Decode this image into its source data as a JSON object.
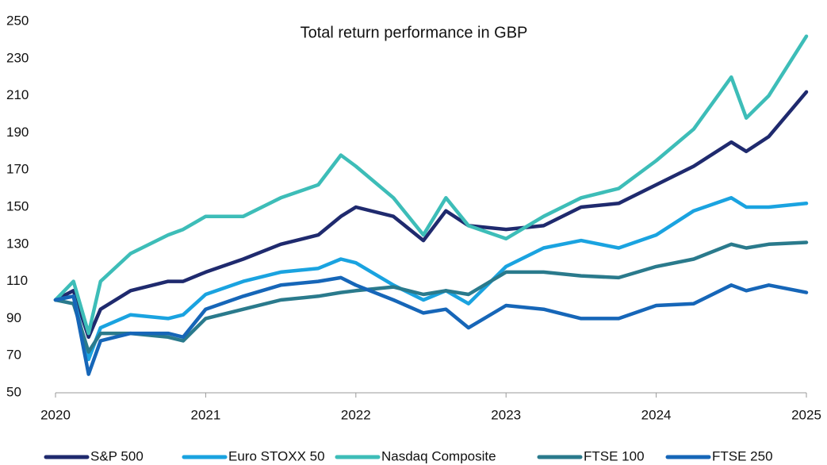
{
  "chart_data": {
    "type": "line",
    "title": "Total return performance in GBP",
    "x": [
      2020.0,
      2020.12,
      2020.22,
      2020.3,
      2020.5,
      2020.75,
      2020.85,
      2021.0,
      2021.25,
      2021.5,
      2021.75,
      2021.9,
      2022.0,
      2022.25,
      2022.45,
      2022.6,
      2022.75,
      2023.0,
      2023.25,
      2023.5,
      2023.75,
      2024.0,
      2024.25,
      2024.5,
      2024.6,
      2024.75,
      2025.0
    ],
    "series": [
      {
        "name": "S&P 500",
        "color": "#1f2a6e",
        "values": [
          100,
          105,
          80,
          95,
          105,
          110,
          110,
          115,
          122,
          130,
          135,
          145,
          150,
          145,
          132,
          148,
          140,
          138,
          140,
          150,
          152,
          162,
          172,
          185,
          180,
          188,
          212
        ]
      },
      {
        "name": "Euro STOXX 50",
        "color": "#1aa3e0",
        "values": [
          100,
          102,
          68,
          85,
          92,
          90,
          92,
          103,
          110,
          115,
          117,
          122,
          120,
          108,
          100,
          105,
          98,
          118,
          128,
          132,
          128,
          135,
          148,
          155,
          150,
          150,
          152
        ]
      },
      {
        "name": "Nasdaq Composite",
        "color": "#3dbdb8",
        "values": [
          100,
          110,
          82,
          110,
          125,
          135,
          138,
          145,
          145,
          155,
          162,
          178,
          172,
          155,
          135,
          155,
          140,
          133,
          145,
          155,
          160,
          175,
          192,
          220,
          198,
          210,
          242
        ]
      },
      {
        "name": "FTSE 100",
        "color": "#2a7a8c",
        "values": [
          100,
          98,
          72,
          82,
          82,
          80,
          78,
          90,
          95,
          100,
          102,
          104,
          105,
          107,
          103,
          105,
          103,
          115,
          115,
          113,
          112,
          118,
          122,
          130,
          128,
          130,
          131
        ]
      },
      {
        "name": "FTSE 250",
        "color": "#1666b8",
        "values": [
          100,
          102,
          60,
          78,
          82,
          82,
          80,
          95,
          102,
          108,
          110,
          112,
          108,
          100,
          93,
          95,
          85,
          97,
          95,
          90,
          90,
          97,
          98,
          108,
          105,
          108,
          104
        ]
      }
    ],
    "xlim": [
      2020,
      2025
    ],
    "xticks": [
      2020,
      2021,
      2022,
      2023,
      2024,
      2025
    ],
    "ylim": [
      50,
      250
    ],
    "yticks": [
      50,
      70,
      90,
      110,
      130,
      150,
      170,
      190,
      210,
      230,
      250
    ],
    "legend": "bottom"
  }
}
